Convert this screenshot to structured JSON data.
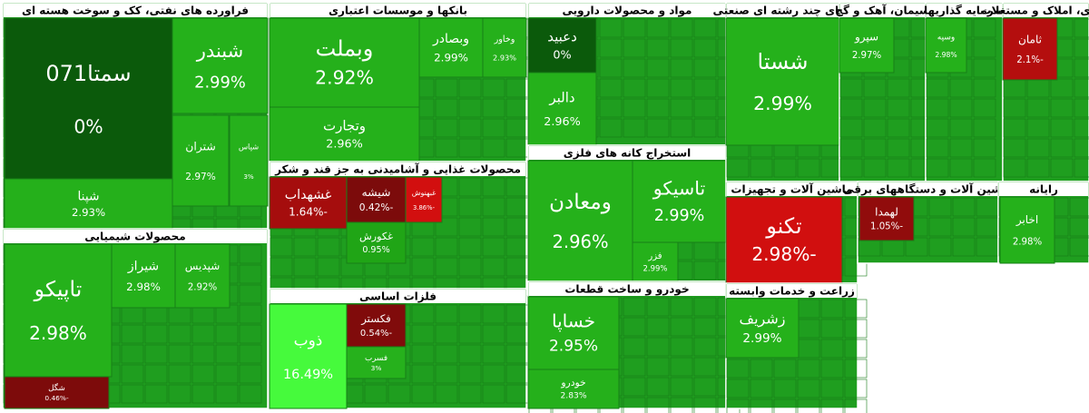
{
  "chart_data": {
    "type": "treemap",
    "sectors": [
      {
        "title": "فراورده های نفتی، کک و سوخت هسته ای",
        "tiles": [
          {
            "name": "سمتا071",
            "value": 0,
            "label": "0%"
          },
          {
            "name": "شبندر",
            "value": 2.99,
            "label": "2.99%"
          },
          {
            "name": "شتران",
            "value": 2.97,
            "label": "2.97%"
          },
          {
            "name": "شپنا",
            "value": 2.93,
            "label": "2.93%"
          },
          {
            "name": "شپاس",
            "value": 3,
            "label": "3%"
          }
        ]
      },
      {
        "title": "محصولات شیمیایی",
        "tiles": [
          {
            "name": "تاپیکو",
            "value": 2.98,
            "label": "2.98%"
          },
          {
            "name": "شیراز",
            "value": 2.98,
            "label": "2.98%"
          },
          {
            "name": "شپدیس",
            "value": 2.92,
            "label": "2.92%"
          },
          {
            "name": "شگل",
            "value": -0.46,
            "label": "-0.46%"
          }
        ]
      },
      {
        "title": "بانکها و موسسات اعتباری",
        "tiles": [
          {
            "name": "وبملت",
            "value": 2.92,
            "label": "2.92%"
          },
          {
            "name": "وتجارت",
            "value": 2.96,
            "label": "2.96%"
          },
          {
            "name": "وبصادر",
            "value": 2.99,
            "label": "2.99%"
          },
          {
            "name": "وخاور",
            "value": 2.93,
            "label": "2.93%"
          }
        ]
      },
      {
        "title": "محصولات غذایی و آشامیدنی به جز قند و شکر",
        "tiles": [
          {
            "name": "غشهداب",
            "value": -1.64,
            "label": "-1.64%"
          },
          {
            "name": "شیشه",
            "value": -0.42,
            "label": "-0.42%"
          },
          {
            "name": "غبهنوش",
            "value": -3.86,
            "label": "-3.86%"
          },
          {
            "name": "غکورش",
            "value": 0.95,
            "label": "0.95%"
          }
        ]
      },
      {
        "title": "فلزات اساسی",
        "tiles": [
          {
            "name": "ذوب",
            "value": 16.49,
            "label": "16.49%"
          },
          {
            "name": "فکستر",
            "value": -0.54,
            "label": "-0.54%"
          },
          {
            "name": "فسرب",
            "value": 3,
            "label": "3%"
          }
        ]
      },
      {
        "title": "مواد و محصولات دارویی",
        "tiles": [
          {
            "name": "دعبید",
            "value": 0,
            "label": "0%"
          },
          {
            "name": "دالبر",
            "value": 2.96,
            "label": "2.96%"
          }
        ]
      },
      {
        "title": "استخراج کانه های فلزی",
        "tiles": [
          {
            "name": "ومعادن",
            "value": 2.96,
            "label": "2.96%"
          },
          {
            "name": "تاسیکو",
            "value": 2.99,
            "label": "2.99%"
          },
          {
            "name": "فزر",
            "value": 2.99,
            "label": "2.99%"
          }
        ]
      },
      {
        "title": "خودرو و ساخت قطعات",
        "tiles": [
          {
            "name": "خساپا",
            "value": 2.95,
            "label": "2.95%"
          },
          {
            "name": "خودرو",
            "value": 2.83,
            "label": "2.83%"
          }
        ]
      },
      {
        "title": "کهای چند رشته ای صنعتی",
        "tiles": [
          {
            "name": "شستا",
            "value": 2.99,
            "label": "2.99%"
          }
        ]
      },
      {
        "title": "ماشین آلات و تجهیزات",
        "tiles": [
          {
            "name": "تکنو",
            "value": -2.98,
            "label": "-2.98%"
          }
        ]
      },
      {
        "title": "سیمان، آهک و گچ",
        "tiles": [
          {
            "name": "سپرو",
            "value": 2.97,
            "label": "2.97%"
          }
        ]
      },
      {
        "title": "سرمایه گذاریها",
        "tiles": [
          {
            "name": "وسپه",
            "value": 2.98,
            "label": "2.98%"
          }
        ]
      },
      {
        "title": "ساری، املاک و مستغلات",
        "tiles": [
          {
            "name": "ثامان",
            "value": -2.1,
            "label": "-2.1%"
          }
        ]
      },
      {
        "title": "ماشین آلات و دستگاههای برقی",
        "tiles": [
          {
            "name": "لهمدا",
            "value": -1.05,
            "label": "-1.05%"
          }
        ]
      },
      {
        "title": "رایانه",
        "tiles": [
          {
            "name": "اخابر",
            "value": 2.98,
            "label": "2.98%"
          }
        ]
      },
      {
        "title": "زراعت و خدمات وابسته",
        "tiles": [
          {
            "name": "زشریف",
            "value": 2.99,
            "label": "2.99%"
          }
        ]
      }
    ]
  }
}
